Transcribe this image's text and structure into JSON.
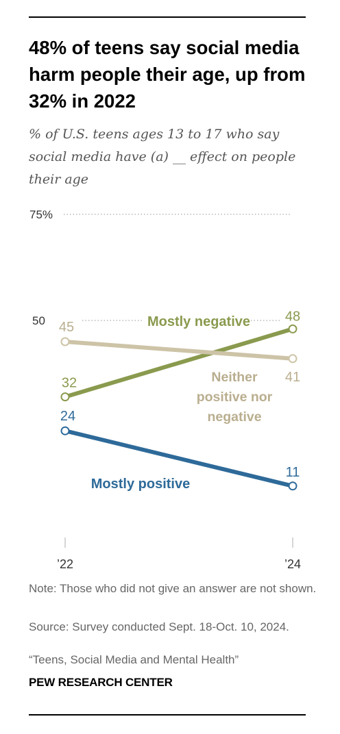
{
  "title": "48% of teens say social media harm people their age, up from 32% in 2022",
  "subtitle": "% of U.S. teens ages 13 to 17 who say social media have (a) __ effect on people their age",
  "note": "Note: Those who did not give an answer are not shown.",
  "source": "Source: Survey conducted Sept. 18-Oct. 10, 2024.",
  "report": "“Teens, Social Media and Mental Health”",
  "brand": "PEW RESEARCH CENTER",
  "chart_data": {
    "type": "line",
    "categories": [
      "’22",
      "’24"
    ],
    "x": [
      2022,
      2024
    ],
    "ylim": [
      0,
      75
    ],
    "y_ticks": [
      75,
      50
    ],
    "y_tick_labels": [
      "75%",
      "50"
    ],
    "grid": "dotted reference lines at 75 and 50",
    "series": [
      {
        "name": "Mostly negative",
        "values": [
          32,
          48
        ],
        "color": "#8a9a4e"
      },
      {
        "name": "Neither positive nor negative",
        "values": [
          45,
          41
        ],
        "color": "#cdc3a7",
        "label_color": "#b9ae8f"
      },
      {
        "name": "Mostly positive",
        "values": [
          24,
          11
        ],
        "color": "#2e6a99"
      }
    ]
  }
}
